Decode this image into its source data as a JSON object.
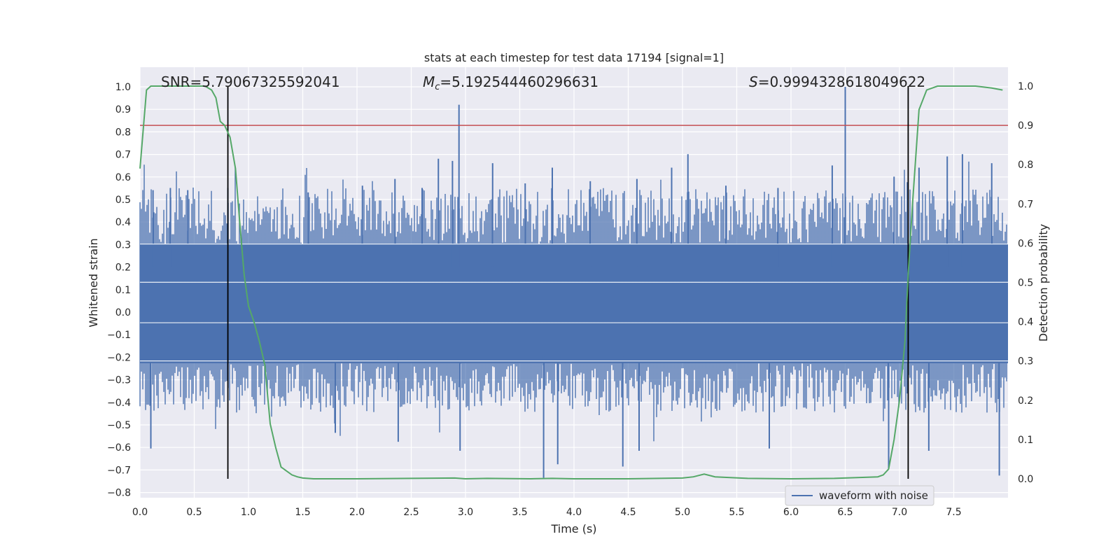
{
  "chart_data": {
    "type": "line",
    "title": "stats at each timestep for test data 17194 [signal=1]",
    "xlabel": "Time (s)",
    "ylabel": "Whitened strain",
    "y2label": "Detection probability",
    "xlim": [
      0.0,
      8.0
    ],
    "ylim": [
      -0.83,
      1.08
    ],
    "y2lim": [
      -0.045,
      1.045
    ],
    "x_ticks": [
      "0.0",
      "0.5",
      "1.0",
      "1.5",
      "2.0",
      "2.5",
      "3.0",
      "3.5",
      "4.0",
      "4.5",
      "5.0",
      "5.5",
      "6.0",
      "6.5",
      "7.0",
      "7.5"
    ],
    "y_ticks": [
      "1.0",
      "0.9",
      "0.8",
      "0.7",
      "0.6",
      "0.5",
      "0.4",
      "0.3",
      "0.2",
      "0.1",
      "0.0",
      "−0.1",
      "−0.2",
      "−0.3",
      "−0.4",
      "−0.5",
      "−0.6",
      "−0.7",
      "−0.8"
    ],
    "y2_ticks": [
      "1.0",
      "0.9",
      "0.8",
      "0.7",
      "0.6",
      "0.5",
      "0.4",
      "0.3",
      "0.2",
      "0.1",
      "0.0"
    ],
    "grid": true,
    "legend_position": "lower-right",
    "annotations": {
      "snr": "SNR=5.79067325592041",
      "mc_sym": "M",
      "mc_sub": "c",
      "mc_val": "=5.192544460296631",
      "s_sym": "S",
      "s_val": "=0.9994328618049622"
    },
    "threshold_y2": 0.9,
    "vertical_lines_x": [
      0.81,
      7.08
    ],
    "series": [
      {
        "name": "waveform with noise",
        "axis": "left",
        "color": "#4c72b0",
        "envelope": {
          "note_free": true,
          "spikes": [
            {
              "x": 0.12,
              "y": 0.54
            },
            {
              "x": 0.28,
              "y": 0.55
            },
            {
              "x": 0.44,
              "y": 0.54
            },
            {
              "x": 0.81,
              "y": 0.55
            },
            {
              "x": 1.55,
              "y": 0.53
            },
            {
              "x": 2.05,
              "y": 0.56
            },
            {
              "x": 2.35,
              "y": 0.59
            },
            {
              "x": 2.6,
              "y": 0.55
            },
            {
              "x": 2.75,
              "y": 0.68
            },
            {
              "x": 2.88,
              "y": 0.67
            },
            {
              "x": 2.94,
              "y": 0.92
            },
            {
              "x": 3.25,
              "y": 0.66
            },
            {
              "x": 3.55,
              "y": 0.57
            },
            {
              "x": 3.8,
              "y": 0.64
            },
            {
              "x": 4.15,
              "y": 0.58
            },
            {
              "x": 4.58,
              "y": 0.59
            },
            {
              "x": 4.9,
              "y": 0.64
            },
            {
              "x": 5.05,
              "y": 0.7
            },
            {
              "x": 5.4,
              "y": 0.56
            },
            {
              "x": 5.88,
              "y": 0.55
            },
            {
              "x": 6.38,
              "y": 0.65
            },
            {
              "x": 6.5,
              "y": 1.0
            },
            {
              "x": 6.95,
              "y": 0.6
            },
            {
              "x": 7.18,
              "y": 0.64
            },
            {
              "x": 7.44,
              "y": 0.69
            },
            {
              "x": 7.58,
              "y": 0.7
            },
            {
              "x": 7.85,
              "y": 0.66
            }
          ],
          "dips": [
            {
              "x": 0.1,
              "y": -0.61
            },
            {
              "x": 1.8,
              "y": -0.54
            },
            {
              "x": 2.38,
              "y": -0.58
            },
            {
              "x": 2.95,
              "y": -0.62
            },
            {
              "x": 3.72,
              "y": -0.74
            },
            {
              "x": 3.85,
              "y": -0.68
            },
            {
              "x": 4.45,
              "y": -0.69
            },
            {
              "x": 4.6,
              "y": -0.62
            },
            {
              "x": 5.8,
              "y": -0.61
            },
            {
              "x": 6.9,
              "y": -0.7
            },
            {
              "x": 7.27,
              "y": -0.62
            },
            {
              "x": 7.92,
              "y": -0.73
            }
          ],
          "core_upper": 0.3,
          "core_lower": -0.23
        }
      },
      {
        "name": "",
        "axis": "right",
        "color": "#55a868",
        "x": [
          0.0,
          0.06,
          0.1,
          0.2,
          0.4,
          0.6,
          0.66,
          0.7,
          0.74,
          0.78,
          0.83,
          0.88,
          0.92,
          0.96,
          1.0,
          1.05,
          1.1,
          1.15,
          1.2,
          1.25,
          1.3,
          1.35,
          1.4,
          1.45,
          1.5,
          1.6,
          1.8,
          2.0,
          2.5,
          2.9,
          3.0,
          3.2,
          3.6,
          3.8,
          4.0,
          4.5,
          5.0,
          5.1,
          5.2,
          5.3,
          5.6,
          6.0,
          6.4,
          6.8,
          6.85,
          6.9,
          6.95,
          7.0,
          7.05,
          7.08,
          7.12,
          7.18,
          7.25,
          7.35,
          7.5,
          7.7,
          7.85,
          7.95
        ],
        "y": [
          0.79,
          0.99,
          1.0,
          1.0,
          1.0,
          1.0,
          0.99,
          0.97,
          0.91,
          0.9,
          0.87,
          0.79,
          0.65,
          0.52,
          0.44,
          0.4,
          0.35,
          0.29,
          0.14,
          0.08,
          0.03,
          0.02,
          0.01,
          0.005,
          0.002,
          0.0,
          0.0,
          0.0,
          0.001,
          0.002,
          0.0,
          0.001,
          0.0,
          0.001,
          0.0,
          0.0,
          0.002,
          0.005,
          0.012,
          0.005,
          0.001,
          0.0,
          0.001,
          0.005,
          0.01,
          0.025,
          0.1,
          0.2,
          0.35,
          0.52,
          0.7,
          0.94,
          0.99,
          1.0,
          1.0,
          1.0,
          0.995,
          0.99
        ]
      }
    ]
  }
}
